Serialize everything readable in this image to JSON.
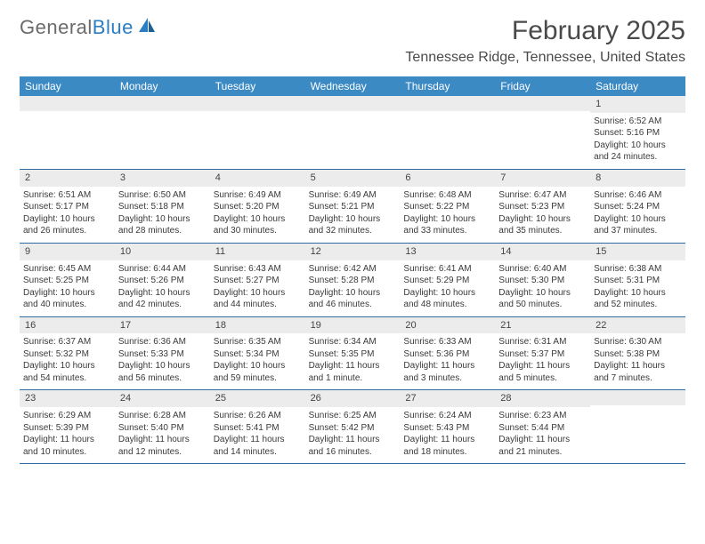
{
  "logo": {
    "text_gray": "General",
    "text_blue": "Blue"
  },
  "title": "February 2025",
  "location": "Tennessee Ridge, Tennessee, United States",
  "colors": {
    "header_bg": "#3b8ac4",
    "header_text": "#ffffff",
    "daynum_bg": "#ececec",
    "week_border": "#2e6ca3",
    "logo_gray": "#6a6a6a",
    "logo_blue": "#2b7ec2"
  },
  "weekdays": [
    "Sunday",
    "Monday",
    "Tuesday",
    "Wednesday",
    "Thursday",
    "Friday",
    "Saturday"
  ],
  "weeks": [
    [
      {
        "n": "",
        "sunrise": "",
        "sunset": "",
        "daylight": ""
      },
      {
        "n": "",
        "sunrise": "",
        "sunset": "",
        "daylight": ""
      },
      {
        "n": "",
        "sunrise": "",
        "sunset": "",
        "daylight": ""
      },
      {
        "n": "",
        "sunrise": "",
        "sunset": "",
        "daylight": ""
      },
      {
        "n": "",
        "sunrise": "",
        "sunset": "",
        "daylight": ""
      },
      {
        "n": "",
        "sunrise": "",
        "sunset": "",
        "daylight": ""
      },
      {
        "n": "1",
        "sunrise": "Sunrise: 6:52 AM",
        "sunset": "Sunset: 5:16 PM",
        "daylight": "Daylight: 10 hours and 24 minutes."
      }
    ],
    [
      {
        "n": "2",
        "sunrise": "Sunrise: 6:51 AM",
        "sunset": "Sunset: 5:17 PM",
        "daylight": "Daylight: 10 hours and 26 minutes."
      },
      {
        "n": "3",
        "sunrise": "Sunrise: 6:50 AM",
        "sunset": "Sunset: 5:18 PM",
        "daylight": "Daylight: 10 hours and 28 minutes."
      },
      {
        "n": "4",
        "sunrise": "Sunrise: 6:49 AM",
        "sunset": "Sunset: 5:20 PM",
        "daylight": "Daylight: 10 hours and 30 minutes."
      },
      {
        "n": "5",
        "sunrise": "Sunrise: 6:49 AM",
        "sunset": "Sunset: 5:21 PM",
        "daylight": "Daylight: 10 hours and 32 minutes."
      },
      {
        "n": "6",
        "sunrise": "Sunrise: 6:48 AM",
        "sunset": "Sunset: 5:22 PM",
        "daylight": "Daylight: 10 hours and 33 minutes."
      },
      {
        "n": "7",
        "sunrise": "Sunrise: 6:47 AM",
        "sunset": "Sunset: 5:23 PM",
        "daylight": "Daylight: 10 hours and 35 minutes."
      },
      {
        "n": "8",
        "sunrise": "Sunrise: 6:46 AM",
        "sunset": "Sunset: 5:24 PM",
        "daylight": "Daylight: 10 hours and 37 minutes."
      }
    ],
    [
      {
        "n": "9",
        "sunrise": "Sunrise: 6:45 AM",
        "sunset": "Sunset: 5:25 PM",
        "daylight": "Daylight: 10 hours and 40 minutes."
      },
      {
        "n": "10",
        "sunrise": "Sunrise: 6:44 AM",
        "sunset": "Sunset: 5:26 PM",
        "daylight": "Daylight: 10 hours and 42 minutes."
      },
      {
        "n": "11",
        "sunrise": "Sunrise: 6:43 AM",
        "sunset": "Sunset: 5:27 PM",
        "daylight": "Daylight: 10 hours and 44 minutes."
      },
      {
        "n": "12",
        "sunrise": "Sunrise: 6:42 AM",
        "sunset": "Sunset: 5:28 PM",
        "daylight": "Daylight: 10 hours and 46 minutes."
      },
      {
        "n": "13",
        "sunrise": "Sunrise: 6:41 AM",
        "sunset": "Sunset: 5:29 PM",
        "daylight": "Daylight: 10 hours and 48 minutes."
      },
      {
        "n": "14",
        "sunrise": "Sunrise: 6:40 AM",
        "sunset": "Sunset: 5:30 PM",
        "daylight": "Daylight: 10 hours and 50 minutes."
      },
      {
        "n": "15",
        "sunrise": "Sunrise: 6:38 AM",
        "sunset": "Sunset: 5:31 PM",
        "daylight": "Daylight: 10 hours and 52 minutes."
      }
    ],
    [
      {
        "n": "16",
        "sunrise": "Sunrise: 6:37 AM",
        "sunset": "Sunset: 5:32 PM",
        "daylight": "Daylight: 10 hours and 54 minutes."
      },
      {
        "n": "17",
        "sunrise": "Sunrise: 6:36 AM",
        "sunset": "Sunset: 5:33 PM",
        "daylight": "Daylight: 10 hours and 56 minutes."
      },
      {
        "n": "18",
        "sunrise": "Sunrise: 6:35 AM",
        "sunset": "Sunset: 5:34 PM",
        "daylight": "Daylight: 10 hours and 59 minutes."
      },
      {
        "n": "19",
        "sunrise": "Sunrise: 6:34 AM",
        "sunset": "Sunset: 5:35 PM",
        "daylight": "Daylight: 11 hours and 1 minute."
      },
      {
        "n": "20",
        "sunrise": "Sunrise: 6:33 AM",
        "sunset": "Sunset: 5:36 PM",
        "daylight": "Daylight: 11 hours and 3 minutes."
      },
      {
        "n": "21",
        "sunrise": "Sunrise: 6:31 AM",
        "sunset": "Sunset: 5:37 PM",
        "daylight": "Daylight: 11 hours and 5 minutes."
      },
      {
        "n": "22",
        "sunrise": "Sunrise: 6:30 AM",
        "sunset": "Sunset: 5:38 PM",
        "daylight": "Daylight: 11 hours and 7 minutes."
      }
    ],
    [
      {
        "n": "23",
        "sunrise": "Sunrise: 6:29 AM",
        "sunset": "Sunset: 5:39 PM",
        "daylight": "Daylight: 11 hours and 10 minutes."
      },
      {
        "n": "24",
        "sunrise": "Sunrise: 6:28 AM",
        "sunset": "Sunset: 5:40 PM",
        "daylight": "Daylight: 11 hours and 12 minutes."
      },
      {
        "n": "25",
        "sunrise": "Sunrise: 6:26 AM",
        "sunset": "Sunset: 5:41 PM",
        "daylight": "Daylight: 11 hours and 14 minutes."
      },
      {
        "n": "26",
        "sunrise": "Sunrise: 6:25 AM",
        "sunset": "Sunset: 5:42 PM",
        "daylight": "Daylight: 11 hours and 16 minutes."
      },
      {
        "n": "27",
        "sunrise": "Sunrise: 6:24 AM",
        "sunset": "Sunset: 5:43 PM",
        "daylight": "Daylight: 11 hours and 18 minutes."
      },
      {
        "n": "28",
        "sunrise": "Sunrise: 6:23 AM",
        "sunset": "Sunset: 5:44 PM",
        "daylight": "Daylight: 11 hours and 21 minutes."
      },
      {
        "n": "",
        "sunrise": "",
        "sunset": "",
        "daylight": ""
      }
    ]
  ]
}
